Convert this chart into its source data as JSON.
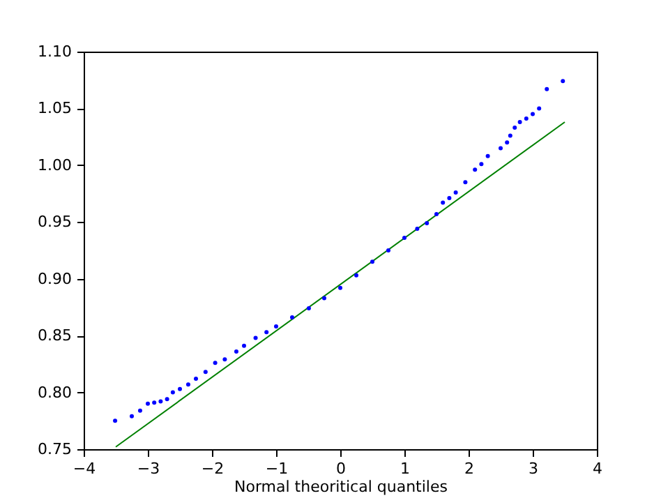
{
  "chart_data": {
    "type": "scatter",
    "xlabel": "Normal theoritical quantiles",
    "xlim": [
      -4,
      4
    ],
    "ylim": [
      0.75,
      1.1
    ],
    "xticks": [
      {
        "value": -4,
        "label": "−4"
      },
      {
        "value": -3,
        "label": "−3"
      },
      {
        "value": -2,
        "label": "−2"
      },
      {
        "value": -1,
        "label": "−1"
      },
      0,
      1,
      2,
      3,
      4
    ],
    "yticks": [
      {
        "value": 0.75,
        "label": "0.75"
      },
      {
        "value": 0.8,
        "label": "0.80"
      },
      {
        "value": 0.85,
        "label": "0.85"
      },
      {
        "value": 0.9,
        "label": "0.90"
      },
      {
        "value": 0.95,
        "label": "0.95"
      },
      {
        "value": 1.0,
        "label": "1.00"
      },
      {
        "value": 1.05,
        "label": "1.05"
      },
      {
        "value": 1.1,
        "label": "1.10"
      }
    ],
    "grid": false,
    "series": [
      {
        "marker": "circle",
        "color": "#0000ff",
        "x": [
          -3.51,
          -3.25,
          -3.12,
          -3.0,
          -2.9,
          -2.8,
          -2.7,
          -2.61,
          -2.5,
          -2.37,
          -2.25,
          -2.1,
          -1.95,
          -1.8,
          -1.62,
          -1.5,
          -1.32,
          -1.15,
          -1.0,
          -0.75,
          -0.49,
          -0.25,
          0.0,
          0.25,
          0.5,
          0.75,
          1.0,
          1.2,
          1.35,
          1.5,
          1.6,
          1.7,
          1.8,
          1.95,
          2.1,
          2.2,
          2.3,
          2.5,
          2.6,
          2.65,
          2.72,
          2.8,
          2.9,
          3.0,
          3.1,
          3.22,
          3.47
        ],
        "values": [
          0.775,
          0.779,
          0.784,
          0.79,
          0.791,
          0.792,
          0.794,
          0.8,
          0.803,
          0.807,
          0.812,
          0.818,
          0.826,
          0.829,
          0.836,
          0.841,
          0.848,
          0.853,
          0.858,
          0.866,
          0.874,
          0.883,
          0.892,
          0.903,
          0.915,
          0.925,
          0.936,
          0.944,
          0.949,
          0.957,
          0.967,
          0.971,
          0.976,
          0.985,
          0.996,
          1.001,
          1.008,
          1.015,
          1.02,
          1.026,
          1.033,
          1.038,
          1.041,
          1.045,
          1.05,
          1.067,
          1.074
        ]
      },
      {
        "type": "line",
        "marker": "none",
        "color": "#008000",
        "x": [
          -3.5,
          3.5
        ],
        "values": [
          0.752,
          1.038
        ]
      }
    ]
  }
}
